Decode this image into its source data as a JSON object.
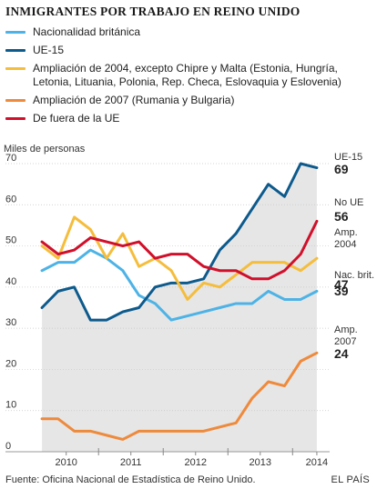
{
  "chart_data": {
    "type": "line",
    "title": "INMIGRANTES POR TRABAJO EN REINO UNIDO",
    "ylabel": "Miles de personas",
    "ylim": [
      0,
      70
    ],
    "yticks": [
      0,
      10,
      20,
      30,
      40,
      50,
      60,
      70
    ],
    "x": [
      2009.5,
      2009.75,
      2010.0,
      2010.25,
      2010.5,
      2010.75,
      2011.0,
      2011.25,
      2011.5,
      2011.75,
      2012.0,
      2012.25,
      2012.5,
      2012.75,
      2013.0,
      2013.25,
      2013.5,
      2013.75
    ],
    "xlim": [
      2009.33,
      2013.92
    ],
    "xticks": [
      "2010",
      "2011",
      "2012",
      "2013",
      "2014"
    ],
    "xtick_positions": [
      2009.875,
      2010.875,
      2011.875,
      2012.875,
      2013.75
    ],
    "grid": true,
    "series": [
      {
        "name": "Nacionalidad británica",
        "color": "#4db3e6",
        "values": [
          44,
          46,
          46,
          49,
          47,
          44,
          38,
          36,
          32,
          33,
          34,
          35,
          36,
          36,
          39,
          37,
          37,
          39
        ],
        "end_label": "Nac. brit.",
        "end_value": "39"
      },
      {
        "name": "UE-15",
        "color": "#0d5a8c",
        "values": [
          35,
          39,
          40,
          32,
          32,
          34,
          35,
          40,
          41,
          41,
          42,
          49,
          53,
          59,
          65,
          62,
          70,
          69
        ],
        "end_label": "UE-15",
        "end_value": "69"
      },
      {
        "name": "Ampliación de 2004, excepto Chipre y Malta (Estonia, Hungría, Letonia, Lituania, Polonia, Rep. Checa, Eslovaquia y Eslovenia)",
        "color": "#f5bd3c",
        "values": [
          50,
          47,
          57,
          54,
          47,
          53,
          45,
          47,
          44,
          37,
          41,
          40,
          43,
          46,
          46,
          46,
          44,
          47
        ],
        "end_label": "Amp. 2004",
        "end_value": "47"
      },
      {
        "name": "Ampliación de 2007 (Rumania y Bulgaria)",
        "color": "#ee8a3c",
        "values": [
          8,
          8,
          5,
          5,
          4,
          3,
          5,
          5,
          5,
          5,
          5,
          6,
          7,
          13,
          17,
          16,
          22,
          24
        ],
        "end_label": "Amp. 2007",
        "end_value": "24"
      },
      {
        "name": "De fuera de la UE",
        "color": "#d0102b",
        "values": [
          51,
          48,
          49,
          52,
          51,
          50,
          51,
          47,
          48,
          48,
          45,
          44,
          44,
          42,
          42,
          44,
          48,
          56
        ],
        "end_label": "No UE",
        "end_value": "56"
      }
    ]
  },
  "footer": {
    "source": "Fuente: Oficina Nacional de Estadística de Reino Unido.",
    "brand": "EL PAÍS"
  }
}
